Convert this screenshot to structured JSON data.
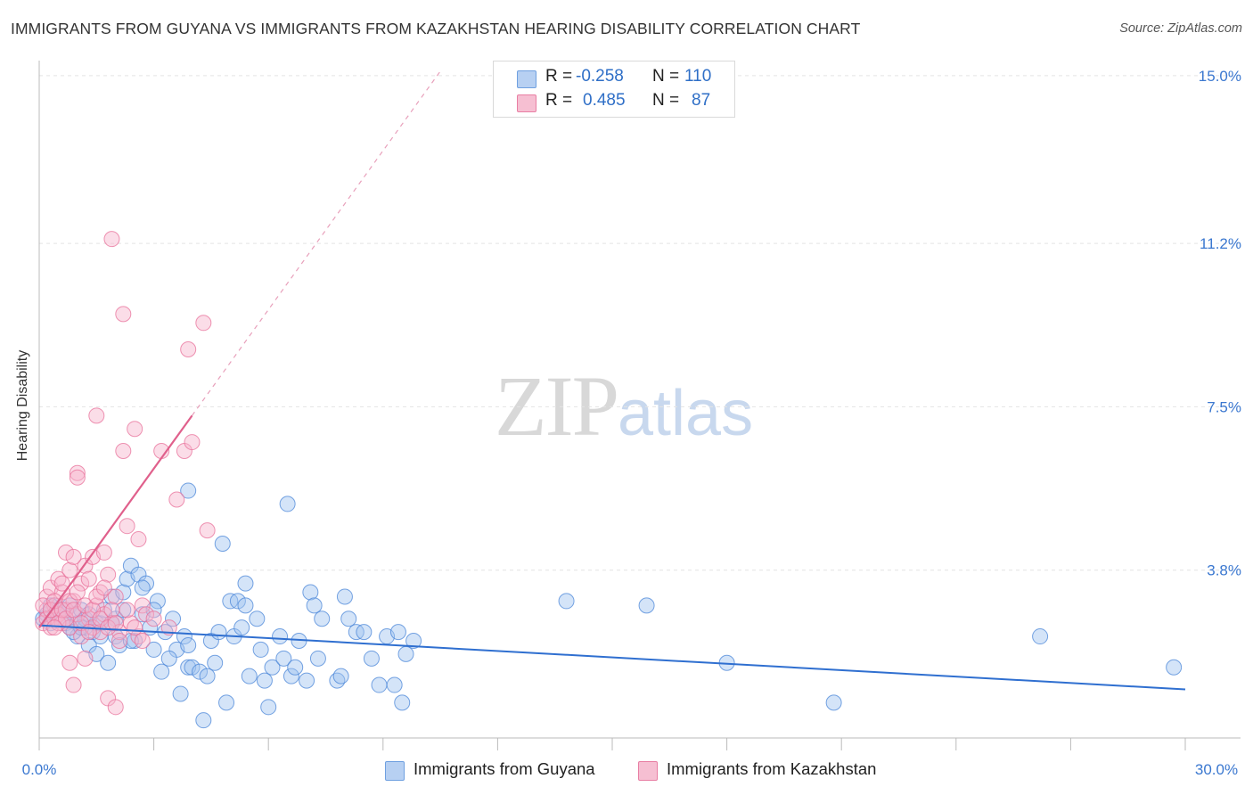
{
  "title": "IMMIGRANTS FROM GUYANA VS IMMIGRANTS FROM KAZAKHSTAN HEARING DISABILITY CORRELATION CHART",
  "source": "Source: ZipAtlas.com",
  "watermark": {
    "zip": "ZIP",
    "atlas": "atlas"
  },
  "legend": {
    "r_label": "R =",
    "n_label": "N =",
    "series": [
      {
        "name": "Immigrants from Guyana",
        "r": "-0.258",
        "n": "110",
        "color": "#6fa0e0",
        "fill": "#b7d0f2"
      },
      {
        "name": "Immigrants from Kazakhstan",
        "r": "0.485",
        "n": "87",
        "color": "#e87ea3",
        "fill": "#f6bfd2"
      }
    ]
  },
  "chart_data": {
    "type": "scatter",
    "title": "IMMIGRANTS FROM GUYANA VS IMMIGRANTS FROM KAZAKHSTAN HEARING DISABILITY CORRELATION CHART",
    "xlabel": "",
    "ylabel": "Hearing Disability",
    "xlim": [
      0,
      30
    ],
    "ylim": [
      0,
      15.3
    ],
    "y_ticks": [
      3.8,
      7.5,
      11.2,
      15.0
    ],
    "y_tick_labels": [
      "3.8%",
      "7.5%",
      "11.2%",
      "15.0%"
    ],
    "x_tick_labels": [
      "0.0%",
      "30.0%"
    ],
    "series": [
      {
        "name": "Immigrants from Guyana",
        "color": "#4a86d8",
        "trend": {
          "x": [
            0,
            30
          ],
          "y": [
            2.55,
            1.1
          ]
        },
        "points": [
          [
            0.2,
            2.8
          ],
          [
            0.3,
            2.6
          ],
          [
            0.4,
            3.0
          ],
          [
            0.5,
            2.9
          ],
          [
            0.6,
            2.7
          ],
          [
            0.7,
            2.6
          ],
          [
            0.8,
            2.5
          ],
          [
            0.8,
            3.0
          ],
          [
            0.9,
            2.8
          ],
          [
            1.0,
            2.3
          ],
          [
            1.0,
            2.6
          ],
          [
            1.1,
            2.9
          ],
          [
            1.2,
            2.5
          ],
          [
            1.2,
            2.7
          ],
          [
            1.3,
            2.1
          ],
          [
            1.4,
            2.4
          ],
          [
            1.5,
            1.9
          ],
          [
            1.5,
            2.6
          ],
          [
            1.6,
            2.6
          ],
          [
            1.7,
            2.9
          ],
          [
            1.8,
            1.7
          ],
          [
            1.9,
            3.2
          ],
          [
            2.0,
            2.3
          ],
          [
            2.0,
            2.7
          ],
          [
            2.1,
            2.1
          ],
          [
            2.2,
            3.3
          ],
          [
            2.3,
            3.6
          ],
          [
            2.4,
            3.9
          ],
          [
            2.5,
            2.2
          ],
          [
            2.6,
            3.7
          ],
          [
            2.7,
            2.8
          ],
          [
            2.8,
            3.5
          ],
          [
            2.9,
            2.5
          ],
          [
            3.0,
            2.0
          ],
          [
            3.1,
            3.1
          ],
          [
            3.2,
            1.5
          ],
          [
            3.3,
            2.4
          ],
          [
            3.5,
            2.7
          ],
          [
            3.6,
            2.0
          ],
          [
            3.7,
            1.0
          ],
          [
            3.8,
            2.3
          ],
          [
            3.9,
            5.6
          ],
          [
            3.9,
            1.6
          ],
          [
            4.0,
            1.6
          ],
          [
            4.2,
            1.5
          ],
          [
            4.3,
            0.4
          ],
          [
            4.4,
            1.4
          ],
          [
            4.5,
            2.2
          ],
          [
            4.6,
            1.7
          ],
          [
            4.7,
            2.4
          ],
          [
            4.8,
            4.4
          ],
          [
            4.9,
            0.8
          ],
          [
            5.0,
            3.1
          ],
          [
            5.1,
            2.3
          ],
          [
            5.2,
            3.1
          ],
          [
            5.3,
            2.5
          ],
          [
            5.4,
            3.5
          ],
          [
            5.4,
            3.0
          ],
          [
            5.5,
            1.4
          ],
          [
            5.7,
            2.7
          ],
          [
            5.8,
            2.0
          ],
          [
            5.9,
            1.3
          ],
          [
            6.0,
            0.7
          ],
          [
            6.1,
            1.6
          ],
          [
            6.3,
            2.3
          ],
          [
            6.4,
            1.8
          ],
          [
            6.5,
            5.3
          ],
          [
            6.6,
            1.4
          ],
          [
            6.7,
            1.6
          ],
          [
            6.8,
            2.2
          ],
          [
            7.0,
            1.3
          ],
          [
            7.1,
            3.3
          ],
          [
            7.2,
            3.0
          ],
          [
            7.3,
            1.8
          ],
          [
            7.4,
            2.7
          ],
          [
            7.8,
            1.3
          ],
          [
            7.9,
            1.4
          ],
          [
            8.0,
            3.2
          ],
          [
            8.1,
            2.7
          ],
          [
            8.3,
            2.4
          ],
          [
            8.5,
            2.4
          ],
          [
            8.7,
            1.8
          ],
          [
            8.9,
            1.2
          ],
          [
            9.1,
            2.3
          ],
          [
            9.3,
            1.2
          ],
          [
            9.4,
            2.4
          ],
          [
            9.5,
            0.8
          ],
          [
            9.6,
            1.9
          ],
          [
            9.8,
            2.2
          ],
          [
            13.8,
            3.1
          ],
          [
            15.9,
            3.0
          ],
          [
            18.0,
            1.7
          ],
          [
            20.8,
            0.8
          ],
          [
            26.2,
            2.3
          ],
          [
            29.7,
            1.6
          ],
          [
            0.1,
            2.7
          ],
          [
            0.3,
            3.0
          ],
          [
            0.5,
            2.8
          ],
          [
            0.7,
            2.9
          ],
          [
            0.9,
            2.4
          ],
          [
            1.1,
            2.5
          ],
          [
            1.3,
            2.8
          ],
          [
            1.6,
            2.3
          ],
          [
            1.9,
            2.6
          ],
          [
            2.2,
            2.9
          ],
          [
            2.4,
            2.2
          ],
          [
            2.7,
            3.4
          ],
          [
            3.0,
            2.9
          ],
          [
            3.4,
            1.8
          ],
          [
            3.9,
            2.1
          ]
        ]
      },
      {
        "name": "Immigrants from Kazakhstan",
        "color": "#e8709a",
        "trend": {
          "x": [
            0,
            4.0
          ],
          "y": [
            2.5,
            7.3
          ]
        },
        "trend_extension": {
          "x": [
            4.0,
            10.5
          ],
          "y": [
            7.3,
            15.1
          ]
        },
        "points": [
          [
            0.1,
            2.6
          ],
          [
            0.2,
            2.9
          ],
          [
            0.2,
            3.2
          ],
          [
            0.3,
            2.5
          ],
          [
            0.3,
            3.4
          ],
          [
            0.4,
            2.7
          ],
          [
            0.4,
            3.0
          ],
          [
            0.5,
            2.8
          ],
          [
            0.5,
            3.6
          ],
          [
            0.6,
            2.6
          ],
          [
            0.6,
            3.3
          ],
          [
            0.7,
            2.9
          ],
          [
            0.7,
            4.2
          ],
          [
            0.8,
            2.5
          ],
          [
            0.8,
            3.8
          ],
          [
            0.8,
            1.7
          ],
          [
            0.9,
            3.1
          ],
          [
            0.9,
            1.2
          ],
          [
            1.0,
            6.0
          ],
          [
            1.0,
            5.9
          ],
          [
            1.0,
            2.8
          ],
          [
            1.1,
            3.5
          ],
          [
            1.1,
            2.3
          ],
          [
            1.2,
            3.9
          ],
          [
            1.2,
            1.8
          ],
          [
            1.3,
            2.7
          ],
          [
            1.3,
            3.6
          ],
          [
            1.4,
            4.1
          ],
          [
            1.4,
            2.5
          ],
          [
            1.5,
            3.0
          ],
          [
            1.5,
            7.3
          ],
          [
            1.6,
            3.3
          ],
          [
            1.6,
            2.4
          ],
          [
            1.7,
            2.8
          ],
          [
            1.7,
            4.2
          ],
          [
            1.8,
            0.9
          ],
          [
            1.8,
            3.7
          ],
          [
            1.9,
            11.3
          ],
          [
            1.9,
            2.6
          ],
          [
            2.0,
            0.7
          ],
          [
            2.0,
            3.2
          ],
          [
            2.1,
            2.4
          ],
          [
            2.2,
            9.6
          ],
          [
            2.2,
            6.5
          ],
          [
            2.3,
            4.8
          ],
          [
            2.4,
            2.6
          ],
          [
            2.5,
            7.0
          ],
          [
            2.6,
            2.3
          ],
          [
            2.6,
            4.5
          ],
          [
            2.7,
            3.0
          ],
          [
            2.8,
            2.8
          ],
          [
            3.0,
            2.7
          ],
          [
            3.2,
            6.5
          ],
          [
            3.4,
            2.5
          ],
          [
            3.6,
            5.4
          ],
          [
            3.8,
            6.5
          ],
          [
            3.9,
            8.8
          ],
          [
            4.0,
            6.7
          ],
          [
            4.3,
            9.4
          ],
          [
            4.4,
            4.7
          ],
          [
            0.1,
            3.0
          ],
          [
            0.2,
            2.7
          ],
          [
            0.3,
            2.9
          ],
          [
            0.4,
            3.1
          ],
          [
            0.5,
            2.6
          ],
          [
            0.6,
            2.9
          ],
          [
            0.7,
            2.7
          ],
          [
            0.8,
            3.1
          ],
          [
            0.9,
            2.9
          ],
          [
            1.0,
            3.3
          ],
          [
            1.1,
            2.6
          ],
          [
            1.2,
            3.0
          ],
          [
            1.3,
            2.4
          ],
          [
            1.4,
            2.9
          ],
          [
            1.5,
            3.2
          ],
          [
            1.6,
            2.7
          ],
          [
            1.7,
            3.4
          ],
          [
            1.8,
            2.5
          ],
          [
            1.9,
            2.9
          ],
          [
            2.0,
            2.6
          ],
          [
            2.1,
            2.2
          ],
          [
            2.3,
            2.9
          ],
          [
            2.5,
            2.5
          ],
          [
            2.7,
            2.2
          ],
          [
            0.4,
            2.5
          ],
          [
            0.6,
            3.5
          ],
          [
            0.9,
            4.1
          ]
        ]
      }
    ]
  }
}
